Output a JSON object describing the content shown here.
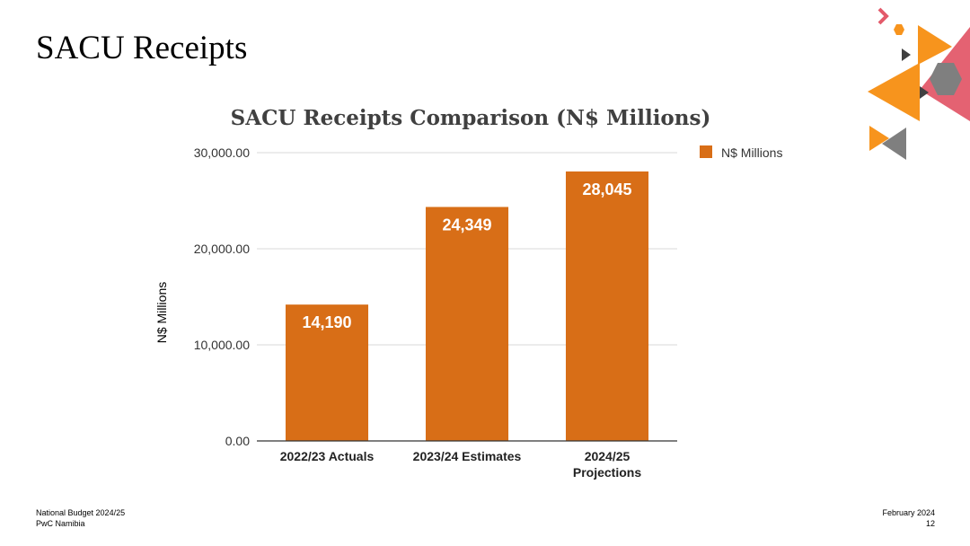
{
  "slide": {
    "title": "SACU Receipts"
  },
  "footer": {
    "left_line1": "National Budget 2024/25",
    "left_line2": "PwC Namibia",
    "right_line1": "February 2024",
    "right_line2": "12"
  },
  "chart_data": {
    "type": "bar",
    "title": "SACU Receipts Comparison (N$ Millions)",
    "xlabel": "",
    "ylabel": "N$ Millions",
    "categories": [
      [
        "2022/23 Actuals"
      ],
      [
        "2023/24 Estimates"
      ],
      [
        "2024/25",
        "Projections"
      ]
    ],
    "series": [
      {
        "name": "N$ Millions",
        "values": [
          14190,
          24349,
          28045
        ],
        "data_labels": [
          "14,190",
          "24,349",
          "28,045"
        ],
        "color": "#D86E17"
      }
    ],
    "ylim": [
      0,
      30000
    ],
    "yticks": [
      0,
      10000,
      20000,
      30000
    ],
    "ytick_labels": [
      "0.00",
      "10,000.00",
      "20,000.00",
      "30,000.00"
    ],
    "grid": true,
    "legend_position": "top-right"
  },
  "colors": {
    "accent_orange": "#F7941D",
    "accent_pink": "#E35A6A",
    "accent_grey": "#7F7F7F",
    "bar": "#D86E17",
    "grid": "#D9D9D9"
  }
}
